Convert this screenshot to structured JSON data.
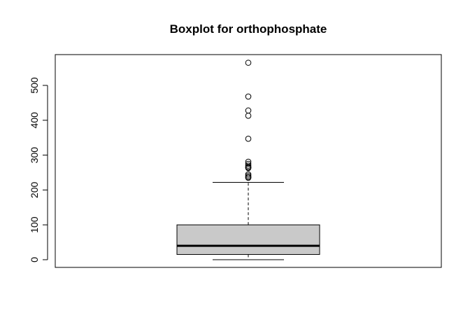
{
  "chart_data": {
    "type": "boxplot",
    "title": "Boxplot for orthophosphate",
    "xlabel": "",
    "ylabel": "",
    "ylim": [
      -22,
      575
    ],
    "yticks": [
      0,
      100,
      200,
      300,
      400,
      500
    ],
    "ytick_labels": [
      "0",
      "100",
      "200",
      "300",
      "400",
      "500"
    ],
    "grid": false,
    "legend": "none",
    "series": [
      {
        "min": 0,
        "q1": 15,
        "median": 40,
        "q3": 100,
        "whisker_low": 0,
        "whisker_high": 222,
        "outliers": [
          565,
          468,
          428,
          413,
          347,
          281,
          275,
          270,
          266,
          264,
          263,
          245,
          241,
          237,
          235
        ]
      }
    ],
    "colors": {
      "box_fill": "#c9c9c9",
      "line": "#000000",
      "median": "#000000",
      "background": "#ffffff"
    }
  }
}
